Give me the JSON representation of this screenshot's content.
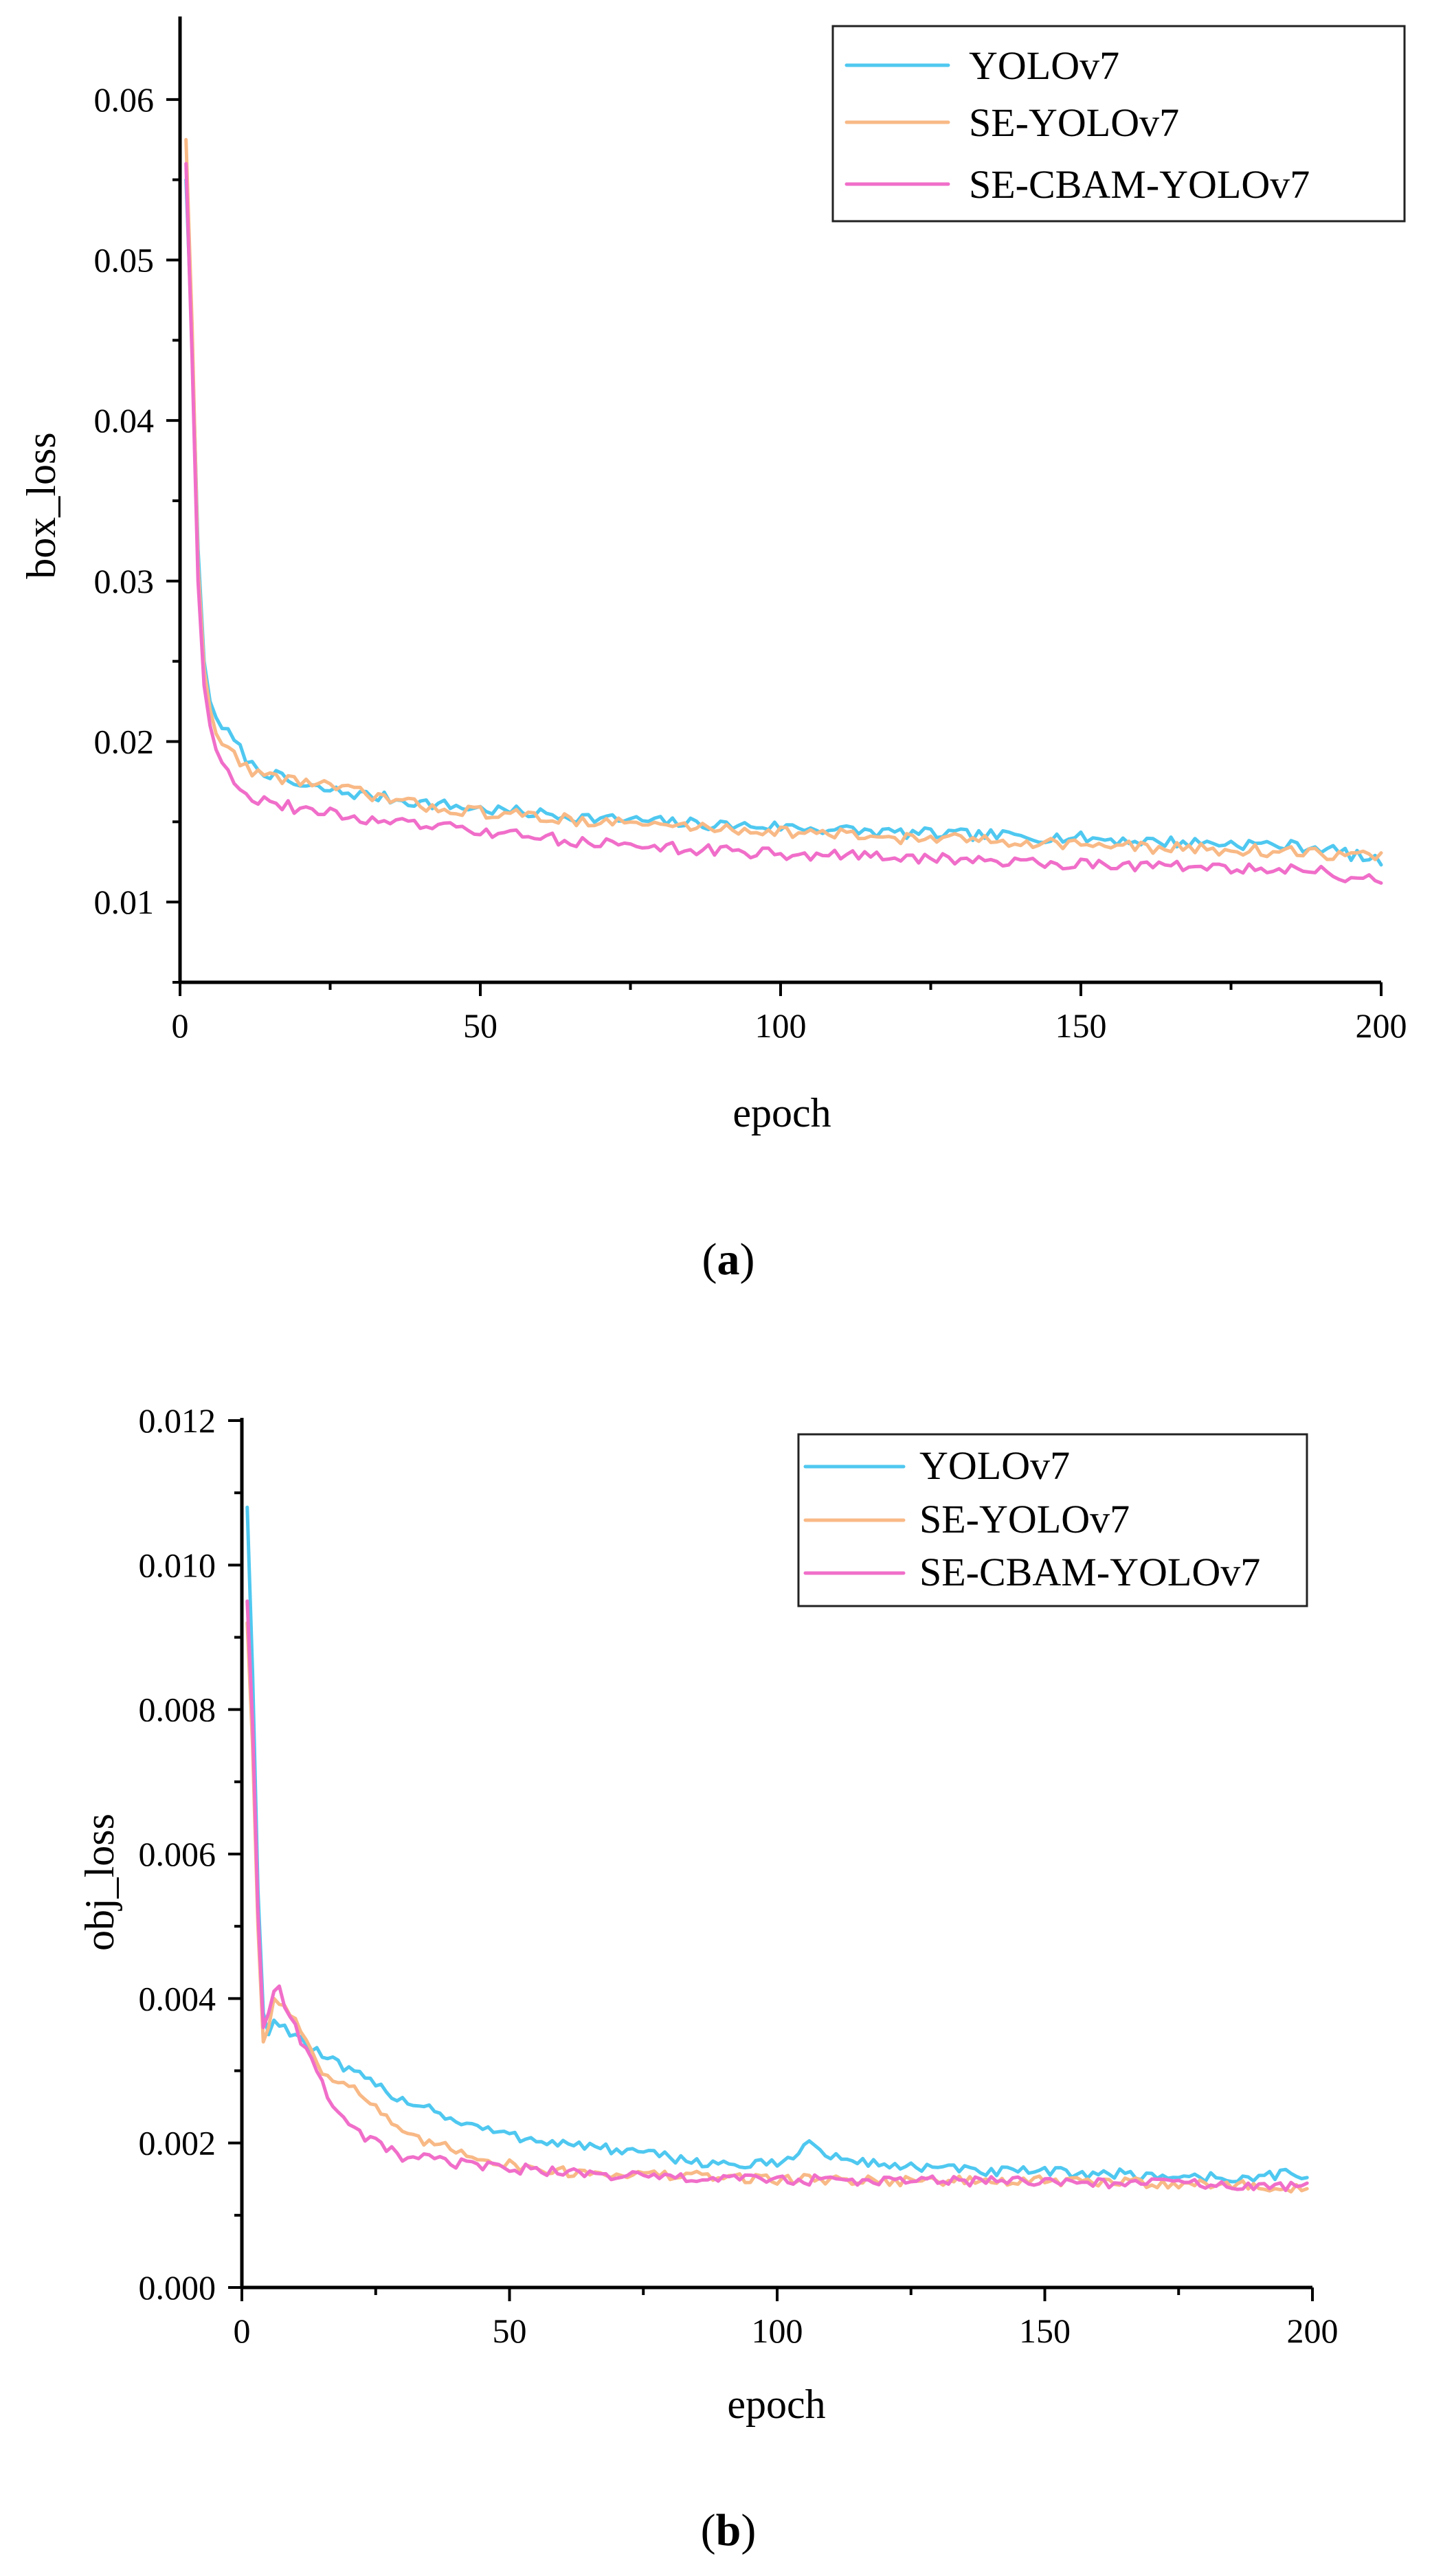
{
  "colors": {
    "YOLOv7": "#4fc8f0",
    "SE-YOLOv7": "#f8b986",
    "SE-CBAM-YOLOv7": "#f06ec9"
  },
  "chart_data": [
    {
      "type": "line",
      "caption": {
        "open": "(",
        "letter": "a",
        "close": ")"
      },
      "xlabel": "epoch",
      "ylabel": "box_loss",
      "xlim": [
        0,
        200
      ],
      "ylim": [
        0.005,
        0.065
      ],
      "xticks": [
        0,
        50,
        100,
        150,
        200
      ],
      "yticks": [
        0.01,
        0.02,
        0.03,
        0.04,
        0.05,
        0.06
      ],
      "ytick_labels": [
        "0.01",
        "0.02",
        "0.03",
        "0.04",
        "0.05",
        "0.06"
      ],
      "legend_position": "top-right",
      "grid": false,
      "series": [
        {
          "name": "YOLOv7",
          "color": "#4fc8f0",
          "x": [
            1,
            2,
            3,
            4,
            5,
            6,
            8,
            10,
            12,
            15,
            20,
            30,
            40,
            50,
            60,
            70,
            80,
            90,
            100,
            110,
            120,
            130,
            140,
            150,
            160,
            170,
            180,
            190,
            200
          ],
          "y": [
            0.055,
            0.045,
            0.032,
            0.025,
            0.0225,
            0.0215,
            0.0205,
            0.0195,
            0.0185,
            0.018,
            0.0172,
            0.0167,
            0.0162,
            0.0158,
            0.0155,
            0.0152,
            0.015,
            0.0148,
            0.0147,
            0.0145,
            0.0143,
            0.0142,
            0.0141,
            0.014,
            0.0138,
            0.0137,
            0.0136,
            0.0134,
            0.0125
          ]
        },
        {
          "name": "SE-YOLOv7",
          "color": "#f8b986",
          "x": [
            1,
            2,
            3,
            4,
            5,
            6,
            8,
            10,
            12,
            15,
            20,
            30,
            40,
            50,
            60,
            70,
            80,
            90,
            100,
            110,
            120,
            130,
            140,
            150,
            160,
            170,
            180,
            190,
            200
          ],
          "y": [
            0.0575,
            0.046,
            0.031,
            0.0245,
            0.022,
            0.0205,
            0.0195,
            0.0188,
            0.0182,
            0.0178,
            0.0176,
            0.0168,
            0.016,
            0.0156,
            0.0153,
            0.015,
            0.0148,
            0.0146,
            0.0144,
            0.0142,
            0.014,
            0.0139,
            0.0138,
            0.0136,
            0.0134,
            0.0133,
            0.0132,
            0.013,
            0.0128
          ]
        },
        {
          "name": "SE-CBAM-YOLOv7",
          "color": "#f06ec9",
          "x": [
            1,
            2,
            3,
            4,
            5,
            6,
            8,
            10,
            12,
            15,
            20,
            30,
            40,
            50,
            60,
            70,
            80,
            90,
            100,
            110,
            120,
            130,
            140,
            150,
            160,
            170,
            180,
            190,
            200
          ],
          "y": [
            0.056,
            0.044,
            0.03,
            0.0235,
            0.021,
            0.0195,
            0.0182,
            0.0172,
            0.0165,
            0.0162,
            0.0158,
            0.0152,
            0.0148,
            0.0144,
            0.014,
            0.0137,
            0.0134,
            0.0132,
            0.013,
            0.0129,
            0.0128,
            0.0126,
            0.0125,
            0.0124,
            0.0123,
            0.0122,
            0.012,
            0.0119,
            0.0112
          ]
        }
      ]
    },
    {
      "type": "line",
      "caption": {
        "open": "(",
        "letter": "b",
        "close": ")"
      },
      "xlabel": "epoch",
      "ylabel": "obj_loss",
      "xlim": [
        0,
        200
      ],
      "ylim": [
        0,
        0.012
      ],
      "xticks": [
        0,
        50,
        100,
        150,
        200
      ],
      "yticks": [
        0,
        0.002,
        0.004,
        0.006,
        0.008,
        0.01,
        0.012
      ],
      "ytick_labels": [
        "0.000",
        "0.002",
        "0.004",
        "0.006",
        "0.008",
        "0.010",
        "0.012"
      ],
      "legend_position": "top-right",
      "grid": false,
      "series": [
        {
          "name": "YOLOv7",
          "color": "#4fc8f0",
          "x": [
            1,
            2,
            3,
            4,
            5,
            6,
            8,
            10,
            15,
            20,
            25,
            30,
            35,
            40,
            50,
            60,
            70,
            80,
            90,
            100,
            106,
            110,
            120,
            130,
            140,
            150,
            160,
            170,
            180,
            190,
            195,
            199
          ],
          "y": [
            0.0108,
            0.0085,
            0.0055,
            0.0038,
            0.0035,
            0.0037,
            0.0036,
            0.0035,
            0.0032,
            0.003,
            0.0028,
            0.0026,
            0.0025,
            0.0023,
            0.0021,
            0.002,
            0.0019,
            0.0018,
            0.0017,
            0.0017,
            0.002,
            0.0018,
            0.0017,
            0.00165,
            0.0016,
            0.0016,
            0.00158,
            0.00155,
            0.00153,
            0.0015,
            0.0016,
            0.00155
          ]
        },
        {
          "name": "SE-YOLOv7",
          "color": "#f8b986",
          "x": [
            1,
            2,
            3,
            4,
            5,
            6,
            8,
            10,
            15,
            20,
            25,
            30,
            35,
            40,
            50,
            60,
            70,
            80,
            90,
            100,
            110,
            120,
            130,
            140,
            150,
            160,
            170,
            180,
            190,
            199
          ],
          "y": [
            0.0092,
            0.0075,
            0.005,
            0.0034,
            0.0036,
            0.004,
            0.0039,
            0.0037,
            0.003,
            0.0028,
            0.0025,
            0.0021,
            0.002,
            0.0019,
            0.0017,
            0.0016,
            0.00158,
            0.00155,
            0.00153,
            0.0015,
            0.0015,
            0.00148,
            0.00148,
            0.00147,
            0.00147,
            0.00146,
            0.00145,
            0.00143,
            0.0014,
            0.00135
          ]
        },
        {
          "name": "SE-CBAM-YOLOv7",
          "color": "#f06ec9",
          "x": [
            1,
            2,
            3,
            4,
            5,
            6,
            7,
            8,
            10,
            15,
            20,
            25,
            30,
            35,
            40,
            50,
            60,
            70,
            80,
            90,
            100,
            110,
            120,
            130,
            140,
            150,
            160,
            170,
            180,
            190,
            199
          ],
          "y": [
            0.0095,
            0.0078,
            0.0052,
            0.0036,
            0.0038,
            0.0041,
            0.0042,
            0.0039,
            0.0036,
            0.0028,
            0.0022,
            0.002,
            0.0018,
            0.00178,
            0.00172,
            0.00165,
            0.0016,
            0.00155,
            0.00152,
            0.0015,
            0.0015,
            0.00148,
            0.00147,
            0.00148,
            0.00147,
            0.00146,
            0.00145,
            0.00145,
            0.00143,
            0.0014,
            0.00138
          ]
        }
      ]
    }
  ]
}
